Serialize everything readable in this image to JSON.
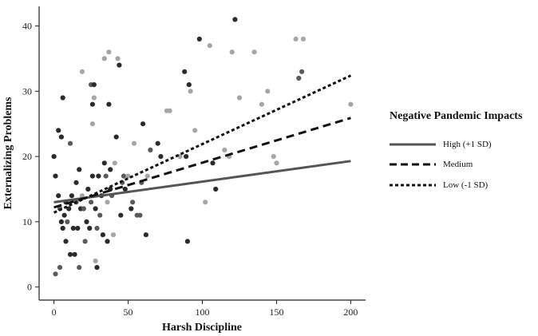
{
  "chart_data": {
    "type": "scatter",
    "title": "",
    "xlabel": "Harsh Discipline",
    "ylabel": "Externalizing Problems",
    "xlim": [
      -10,
      210
    ],
    "ylim": [
      -2,
      43
    ],
    "xticks": [
      0,
      50,
      100,
      150,
      200
    ],
    "yticks": [
      0,
      10,
      20,
      30,
      40
    ],
    "grid": false,
    "legend": {
      "title": "Negative Pandemic Impacts",
      "placement": "right",
      "entries": [
        {
          "label": "High (+1 SD)",
          "style": "solid",
          "color": "#555555"
        },
        {
          "label": "Medium",
          "style": "dashed",
          "color": "#111111"
        },
        {
          "label": "Low (-1 SD)",
          "style": "dotted",
          "color": "#111111"
        }
      ]
    },
    "lines": [
      {
        "style": "solid",
        "color": "#555555",
        "x": [
          0,
          200
        ],
        "y": [
          13.0,
          19.3
        ]
      },
      {
        "style": "dashed",
        "color": "#111111",
        "x": [
          0,
          200
        ],
        "y": [
          12.2,
          25.9
        ]
      },
      {
        "style": "dotted",
        "color": "#111111",
        "x": [
          0,
          200
        ],
        "y": [
          11.4,
          32.4
        ]
      }
    ],
    "colors": {
      "dark": "#2b2b2b",
      "mid": "#5a5a5a",
      "light": "#a6a6a6"
    },
    "points": [
      {
        "x": 1,
        "y": 2,
        "c": "mid"
      },
      {
        "x": 4,
        "y": 3,
        "c": "mid"
      },
      {
        "x": 0,
        "y": 20,
        "c": "dark"
      },
      {
        "x": 1,
        "y": 17,
        "c": "dark"
      },
      {
        "x": 3,
        "y": 14,
        "c": "dark"
      },
      {
        "x": 3,
        "y": 24,
        "c": "dark"
      },
      {
        "x": 5,
        "y": 23,
        "c": "dark"
      },
      {
        "x": 4,
        "y": 12,
        "c": "mid"
      },
      {
        "x": 5,
        "y": 10,
        "c": "dark"
      },
      {
        "x": 6,
        "y": 29,
        "c": "dark"
      },
      {
        "x": 6,
        "y": 9,
        "c": "dark"
      },
      {
        "x": 7,
        "y": 11,
        "c": "dark"
      },
      {
        "x": 8,
        "y": 7,
        "c": "dark"
      },
      {
        "x": 8,
        "y": 13,
        "c": "dark"
      },
      {
        "x": 9,
        "y": 10,
        "c": "mid"
      },
      {
        "x": 10,
        "y": 12,
        "c": "dark"
      },
      {
        "x": 11,
        "y": 22,
        "c": "mid"
      },
      {
        "x": 11,
        "y": 5,
        "c": "dark"
      },
      {
        "x": 12,
        "y": 14,
        "c": "dark"
      },
      {
        "x": 13,
        "y": 9,
        "c": "dark"
      },
      {
        "x": 14,
        "y": 5,
        "c": "dark"
      },
      {
        "x": 15,
        "y": 16,
        "c": "dark"
      },
      {
        "x": 15,
        "y": 13,
        "c": "mid"
      },
      {
        "x": 16,
        "y": 9,
        "c": "dark"
      },
      {
        "x": 17,
        "y": 18,
        "c": "dark"
      },
      {
        "x": 17,
        "y": 3,
        "c": "mid"
      },
      {
        "x": 18,
        "y": 12,
        "c": "dark"
      },
      {
        "x": 19,
        "y": 14,
        "c": "light"
      },
      {
        "x": 19,
        "y": 33,
        "c": "light"
      },
      {
        "x": 20,
        "y": 12,
        "c": "mid"
      },
      {
        "x": 21,
        "y": 7,
        "c": "mid"
      },
      {
        "x": 22,
        "y": 10,
        "c": "dark"
      },
      {
        "x": 23,
        "y": 15,
        "c": "dark"
      },
      {
        "x": 24,
        "y": 9,
        "c": "dark"
      },
      {
        "x": 25,
        "y": 13,
        "c": "mid"
      },
      {
        "x": 25,
        "y": 31,
        "c": "mid"
      },
      {
        "x": 26,
        "y": 28,
        "c": "dark"
      },
      {
        "x": 26,
        "y": 17,
        "c": "dark"
      },
      {
        "x": 26,
        "y": 25,
        "c": "light"
      },
      {
        "x": 27,
        "y": 31,
        "c": "dark"
      },
      {
        "x": 27,
        "y": 29,
        "c": "light"
      },
      {
        "x": 28,
        "y": 4,
        "c": "light"
      },
      {
        "x": 28,
        "y": 12,
        "c": "dark"
      },
      {
        "x": 29,
        "y": 9,
        "c": "mid"
      },
      {
        "x": 29,
        "y": 3,
        "c": "dark"
      },
      {
        "x": 30,
        "y": 17,
        "c": "dark"
      },
      {
        "x": 31,
        "y": 11,
        "c": "mid"
      },
      {
        "x": 32,
        "y": 14,
        "c": "dark"
      },
      {
        "x": 33,
        "y": 8,
        "c": "dark"
      },
      {
        "x": 34,
        "y": 35,
        "c": "light"
      },
      {
        "x": 34,
        "y": 19,
        "c": "dark"
      },
      {
        "x": 35,
        "y": 17,
        "c": "mid"
      },
      {
        "x": 36,
        "y": 13,
        "c": "light"
      },
      {
        "x": 36,
        "y": 7,
        "c": "dark"
      },
      {
        "x": 37,
        "y": 28,
        "c": "dark"
      },
      {
        "x": 37,
        "y": 36,
        "c": "light"
      },
      {
        "x": 38,
        "y": 15,
        "c": "dark"
      },
      {
        "x": 38,
        "y": 18,
        "c": "dark"
      },
      {
        "x": 39,
        "y": 14,
        "c": "mid"
      },
      {
        "x": 40,
        "y": 8,
        "c": "light"
      },
      {
        "x": 41,
        "y": 19,
        "c": "light"
      },
      {
        "x": 42,
        "y": 23,
        "c": "dark"
      },
      {
        "x": 43,
        "y": 35,
        "c": "light"
      },
      {
        "x": 44,
        "y": 34,
        "c": "dark"
      },
      {
        "x": 45,
        "y": 11,
        "c": "dark"
      },
      {
        "x": 46,
        "y": 16,
        "c": "mid"
      },
      {
        "x": 47,
        "y": 17,
        "c": "mid"
      },
      {
        "x": 48,
        "y": 15,
        "c": "dark"
      },
      {
        "x": 50,
        "y": 17,
        "c": "light"
      },
      {
        "x": 52,
        "y": 12,
        "c": "dark"
      },
      {
        "x": 53,
        "y": 13,
        "c": "mid"
      },
      {
        "x": 54,
        "y": 22,
        "c": "light"
      },
      {
        "x": 56,
        "y": 11,
        "c": "mid"
      },
      {
        "x": 58,
        "y": 11,
        "c": "mid"
      },
      {
        "x": 59,
        "y": 16,
        "c": "mid"
      },
      {
        "x": 60,
        "y": 25,
        "c": "dark"
      },
      {
        "x": 62,
        "y": 8,
        "c": "dark"
      },
      {
        "x": 63,
        "y": 17,
        "c": "light"
      },
      {
        "x": 65,
        "y": 21,
        "c": "mid"
      },
      {
        "x": 70,
        "y": 22,
        "c": "dark"
      },
      {
        "x": 72,
        "y": 20,
        "c": "dark"
      },
      {
        "x": 76,
        "y": 27,
        "c": "light"
      },
      {
        "x": 78,
        "y": 27,
        "c": "light"
      },
      {
        "x": 85,
        "y": 20,
        "c": "light"
      },
      {
        "x": 88,
        "y": 33,
        "c": "dark"
      },
      {
        "x": 89,
        "y": 20,
        "c": "dark"
      },
      {
        "x": 90,
        "y": 7,
        "c": "dark"
      },
      {
        "x": 91,
        "y": 31,
        "c": "dark"
      },
      {
        "x": 92,
        "y": 30,
        "c": "light"
      },
      {
        "x": 95,
        "y": 24,
        "c": "light"
      },
      {
        "x": 98,
        "y": 38,
        "c": "dark"
      },
      {
        "x": 102,
        "y": 13,
        "c": "light"
      },
      {
        "x": 105,
        "y": 37,
        "c": "light"
      },
      {
        "x": 107,
        "y": 19,
        "c": "dark"
      },
      {
        "x": 109,
        "y": 15,
        "c": "dark"
      },
      {
        "x": 115,
        "y": 21,
        "c": "light"
      },
      {
        "x": 118,
        "y": 20,
        "c": "light"
      },
      {
        "x": 120,
        "y": 36,
        "c": "light"
      },
      {
        "x": 122,
        "y": 41,
        "c": "dark"
      },
      {
        "x": 125,
        "y": 29,
        "c": "light"
      },
      {
        "x": 135,
        "y": 36,
        "c": "light"
      },
      {
        "x": 140,
        "y": 28,
        "c": "light"
      },
      {
        "x": 144,
        "y": 30,
        "c": "light"
      },
      {
        "x": 148,
        "y": 20,
        "c": "light"
      },
      {
        "x": 150,
        "y": 19,
        "c": "light"
      },
      {
        "x": 163,
        "y": 38,
        "c": "light"
      },
      {
        "x": 165,
        "y": 32,
        "c": "mid"
      },
      {
        "x": 167,
        "y": 33,
        "c": "mid"
      },
      {
        "x": 168,
        "y": 38,
        "c": "light"
      },
      {
        "x": 200,
        "y": 28,
        "c": "light"
      }
    ]
  }
}
